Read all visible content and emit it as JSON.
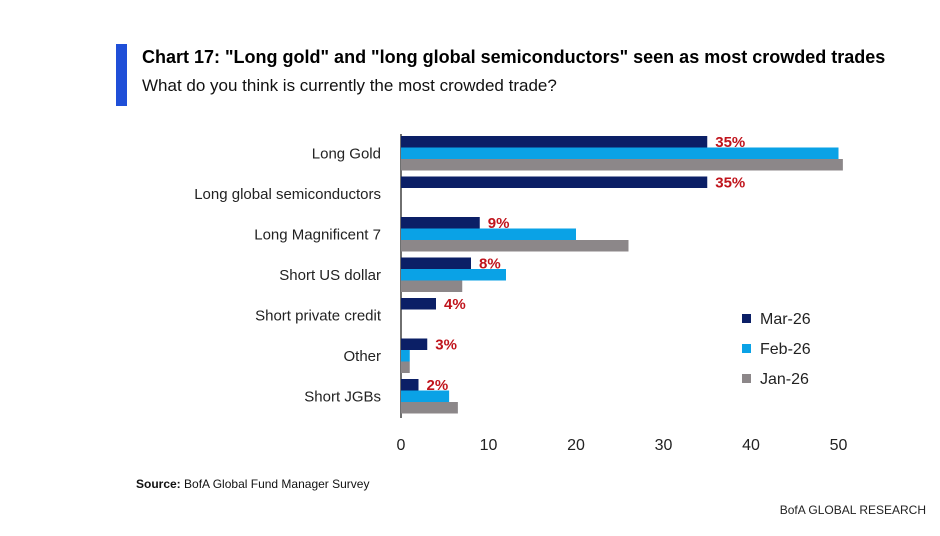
{
  "header": {
    "title": "Chart 17: \"Long gold\" and \"long global semiconductors\" seen as most crowded trades",
    "subtitle": "What do you think is currently the most crowded trade?"
  },
  "source": {
    "label": "Source:",
    "text": "BofA Global Fund Manager Survey"
  },
  "footer": {
    "brand": "BofA GLOBAL RESEARCH"
  },
  "colors": {
    "mar26": "#0b1f66",
    "feb26": "#0aa2e6",
    "jan26": "#8c8789",
    "accent": "#1f4fd8",
    "label_red": "#c0141c"
  },
  "chart_data": {
    "type": "bar",
    "orientation": "horizontal",
    "title": "Chart 17: \"Long gold\" and \"long global semiconductors\" seen as most crowded trades",
    "subtitle": "What do you think is currently the most crowded trade?",
    "categories": [
      "Long Gold",
      "Long global semiconductors",
      "Long Magnificent 7",
      "Short US dollar",
      "Short private credit",
      "Other",
      "Short JGBs"
    ],
    "series": [
      {
        "name": "Mar-26",
        "values": [
          35,
          35,
          9,
          8,
          4,
          3,
          2
        ]
      },
      {
        "name": "Feb-26",
        "values": [
          50,
          null,
          20,
          12,
          null,
          1,
          5.5
        ]
      },
      {
        "name": "Jan-26",
        "values": [
          50.5,
          null,
          26,
          7,
          null,
          1,
          6.5
        ]
      }
    ],
    "data_labels": [
      "35%",
      "35%",
      "9%",
      "8%",
      "4%",
      "3%",
      "2%"
    ],
    "xlim": [
      0,
      50
    ],
    "xticks": [
      "0",
      "10",
      "20",
      "30",
      "40",
      "50"
    ],
    "legend": [
      "Mar-26",
      "Feb-26",
      "Jan-26"
    ],
    "legend_position": "right",
    "grid": false
  }
}
